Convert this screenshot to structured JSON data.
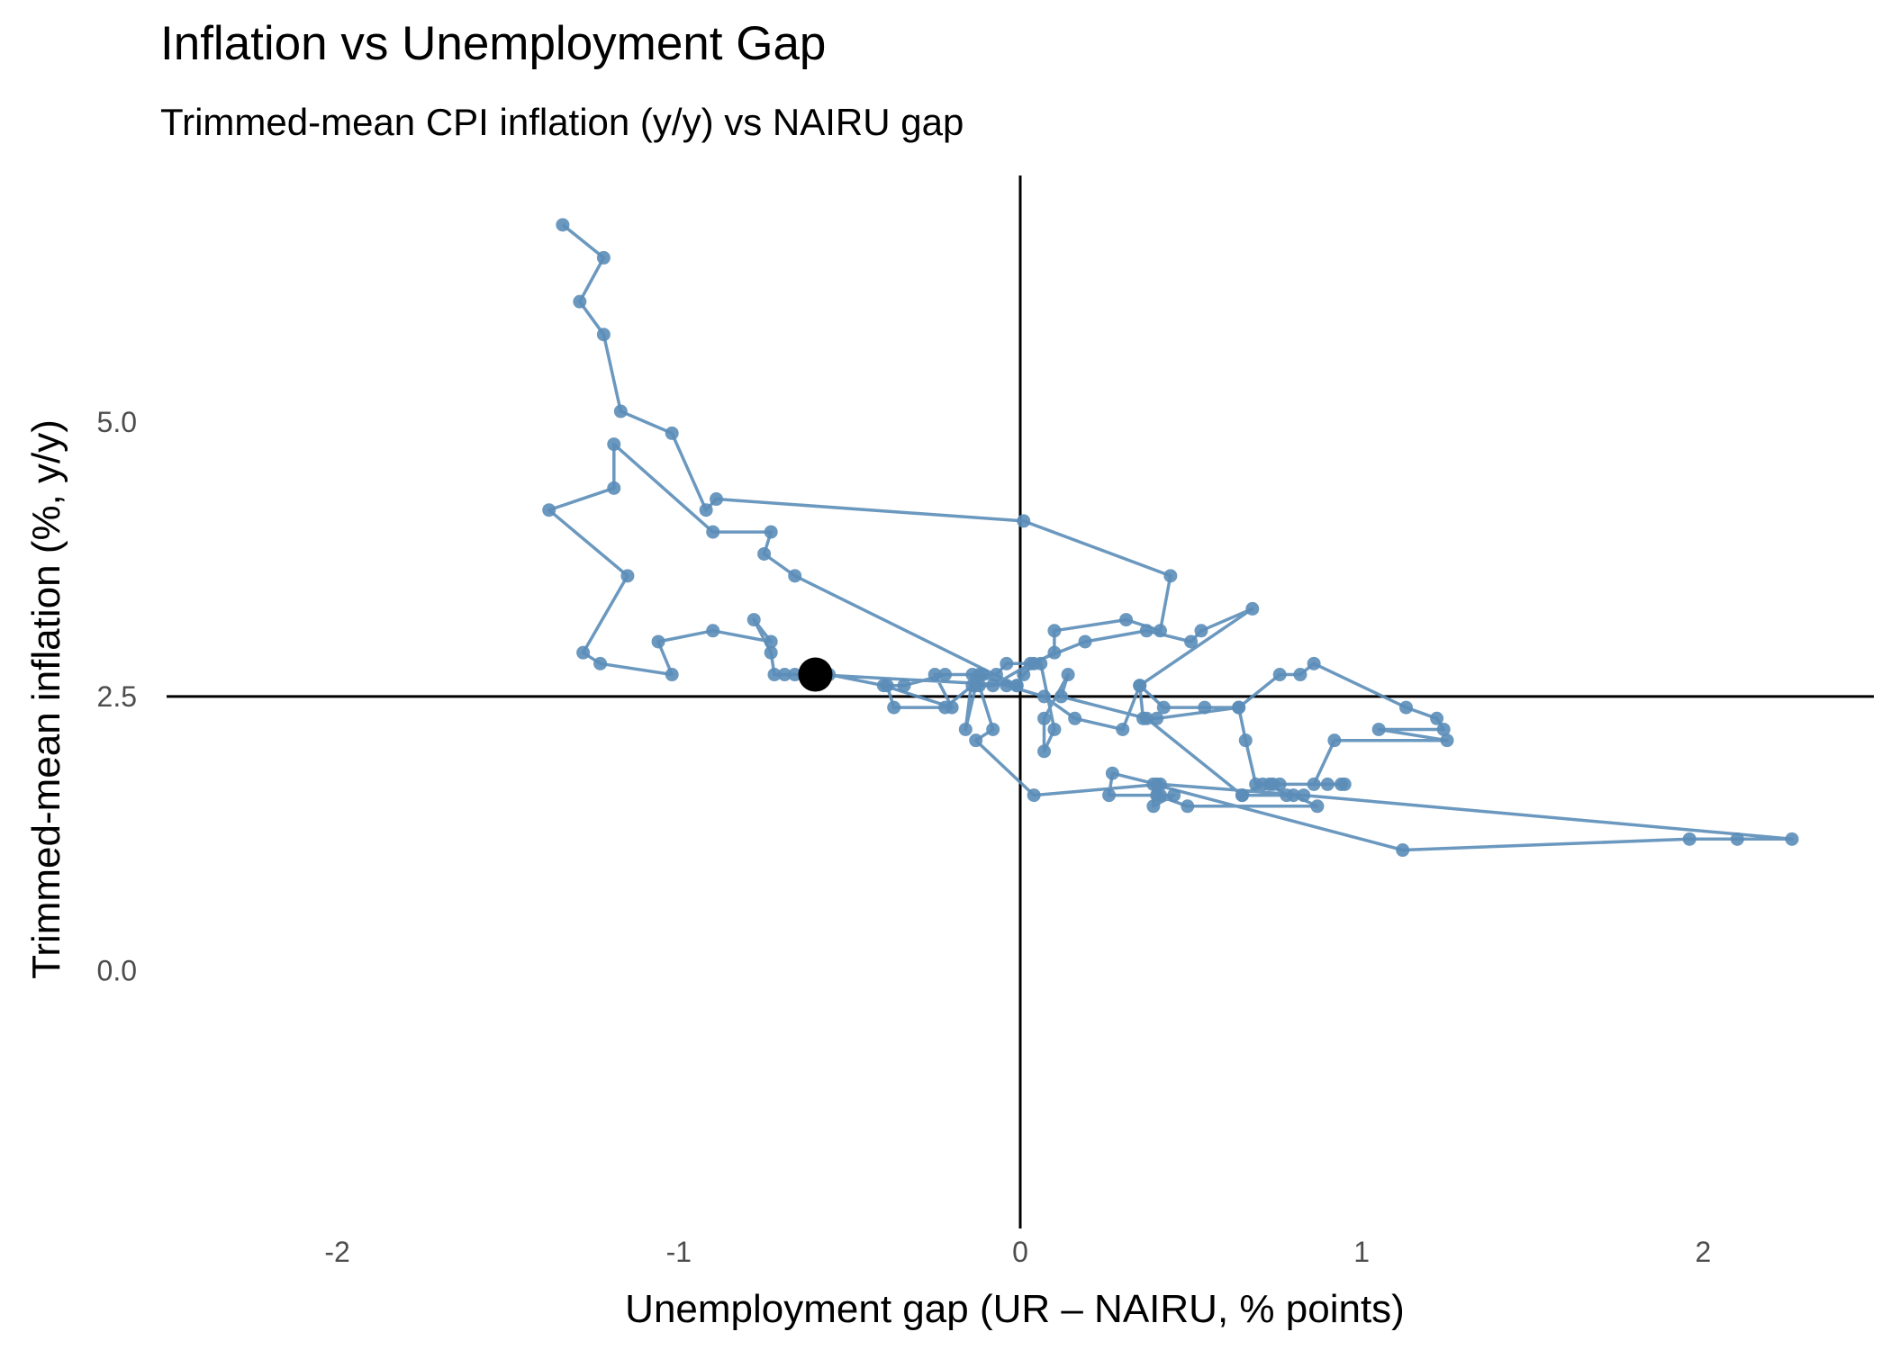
{
  "chart_data": {
    "type": "scatter",
    "title": "Inflation vs Unemployment Gap",
    "subtitle": "Trimmed-mean CPI inflation (y/y) vs NAIRU gap",
    "xlabel": "Unemployment gap (UR – NAIRU, % points)",
    "ylabel": "Trimmed-mean inflation (%, y/y)",
    "xlim": [
      -2.5,
      2.5
    ],
    "ylim": [
      -2.35,
      7.25
    ],
    "x_ticks": [
      -2,
      -1,
      0,
      1,
      2
    ],
    "x_tick_labels": [
      "-2",
      "-1",
      "0",
      "1",
      "2"
    ],
    "y_ticks": [
      0.0,
      2.5,
      5.0
    ],
    "y_tick_labels": [
      "0.0",
      "2.5",
      "5.0"
    ],
    "grid": false,
    "reference_lines": {
      "x": 0,
      "y": 2.5
    },
    "series": [
      {
        "color": "#5B8DB8",
        "connected": true,
        "points": [
          [
            -1.34,
            6.8
          ],
          [
            -1.22,
            6.5
          ],
          [
            -1.29,
            6.1
          ],
          [
            -1.22,
            5.8
          ],
          [
            -1.17,
            5.1
          ],
          [
            -1.02,
            4.9
          ],
          [
            -0.92,
            4.2
          ],
          [
            -0.89,
            4.3
          ],
          [
            0.01,
            4.1
          ],
          [
            0.44,
            3.6
          ],
          [
            0.41,
            3.1
          ],
          [
            0.31,
            3.2
          ],
          [
            0.1,
            3.1
          ],
          [
            0.1,
            2.9
          ],
          [
            0.04,
            2.8
          ],
          [
            0.01,
            2.7
          ],
          [
            -0.01,
            2.6
          ],
          [
            -0.14,
            2.7
          ],
          [
            -0.16,
            2.2
          ],
          [
            -0.13,
            2.6
          ],
          [
            -0.08,
            2.6
          ],
          [
            0.03,
            2.8
          ],
          [
            0.19,
            3.0
          ],
          [
            0.37,
            3.1
          ],
          [
            0.5,
            3.0
          ],
          [
            0.53,
            3.1
          ],
          [
            0.68,
            3.3
          ],
          [
            0.35,
            2.6
          ],
          [
            0.36,
            2.3
          ],
          [
            0.4,
            2.3
          ],
          [
            0.64,
            2.4
          ],
          [
            0.66,
            2.1
          ],
          [
            0.69,
            1.7
          ],
          [
            0.9,
            1.7
          ],
          [
            0.95,
            1.7
          ],
          [
            0.94,
            1.7
          ],
          [
            0.76,
            1.7
          ],
          [
            0.74,
            1.7
          ],
          [
            0.71,
            1.7
          ],
          [
            0.65,
            1.6
          ],
          [
            0.8,
            1.6
          ],
          [
            0.87,
            1.5
          ],
          [
            0.49,
            1.5
          ],
          [
            0.4,
            1.6
          ],
          [
            0.26,
            1.6
          ],
          [
            0.27,
            1.8
          ],
          [
            0.4,
            1.7
          ],
          [
            0.41,
            1.6
          ],
          [
            0.45,
            1.6
          ],
          [
            0.39,
            1.5
          ],
          [
            0.39,
            1.7
          ],
          [
            1.12,
            1.1
          ],
          [
            1.96,
            1.2
          ],
          [
            2.1,
            1.2
          ],
          [
            2.26,
            1.2
          ],
          [
            0.83,
            1.6
          ],
          [
            0.41,
            1.7
          ],
          [
            0.04,
            1.6
          ],
          [
            -0.13,
            2.1
          ],
          [
            -0.08,
            2.2
          ],
          [
            -0.12,
            2.6
          ],
          [
            -0.14,
            2.6
          ],
          [
            -0.22,
            2.4
          ],
          [
            -0.37,
            2.4
          ],
          [
            -0.39,
            2.6
          ],
          [
            -0.34,
            2.6
          ],
          [
            -0.22,
            2.7
          ],
          [
            -0.11,
            2.7
          ],
          [
            -0.04,
            2.6
          ],
          [
            0.07,
            2.5
          ],
          [
            0.16,
            2.3
          ],
          [
            0.3,
            2.2
          ],
          [
            0.35,
            2.6
          ],
          [
            0.42,
            2.4
          ],
          [
            0.54,
            2.4
          ],
          [
            0.64,
            2.4
          ],
          [
            0.76,
            2.7
          ],
          [
            0.82,
            2.7
          ],
          [
            0.86,
            2.8
          ],
          [
            1.13,
            2.4
          ],
          [
            1.22,
            2.3
          ],
          [
            1.24,
            2.2
          ],
          [
            1.05,
            2.2
          ],
          [
            1.25,
            2.1
          ],
          [
            0.92,
            2.1
          ],
          [
            0.86,
            1.7
          ],
          [
            0.73,
            1.7
          ],
          [
            0.78,
            1.6
          ],
          [
            0.65,
            1.6
          ],
          [
            0.37,
            2.3
          ],
          [
            0.12,
            2.5
          ],
          [
            0.14,
            2.7
          ],
          [
            0.07,
            2.3
          ],
          [
            0.07,
            2.0
          ],
          [
            0.1,
            2.2
          ],
          [
            0.06,
            2.8
          ],
          [
            -0.04,
            2.8
          ],
          [
            -0.07,
            2.7
          ],
          [
            -0.12,
            2.7
          ],
          [
            -0.25,
            2.7
          ],
          [
            -0.2,
            2.4
          ],
          [
            -0.4,
            2.6
          ],
          [
            -0.56,
            2.7
          ],
          [
            -0.66,
            2.7
          ],
          [
            -0.69,
            2.7
          ],
          [
            -0.72,
            2.7
          ],
          [
            -0.73,
            2.9
          ],
          [
            -0.78,
            3.2
          ],
          [
            -0.73,
            3.0
          ],
          [
            -0.9,
            3.1
          ],
          [
            -1.06,
            3.0
          ],
          [
            -1.02,
            2.7
          ],
          [
            -1.23,
            2.8
          ],
          [
            -1.28,
            2.9
          ],
          [
            -1.15,
            3.6
          ],
          [
            -1.38,
            4.2
          ],
          [
            -1.19,
            4.4
          ],
          [
            -1.19,
            4.8
          ],
          [
            -0.9,
            4.0
          ],
          [
            -0.73,
            4.0
          ],
          [
            -0.75,
            3.8
          ],
          [
            -0.66,
            3.6
          ],
          [
            -0.01,
            2.6
          ],
          [
            -0.6,
            2.7
          ]
        ]
      }
    ],
    "highlight_point": {
      "x": -0.6,
      "y": 2.7,
      "color": "#000000"
    }
  }
}
